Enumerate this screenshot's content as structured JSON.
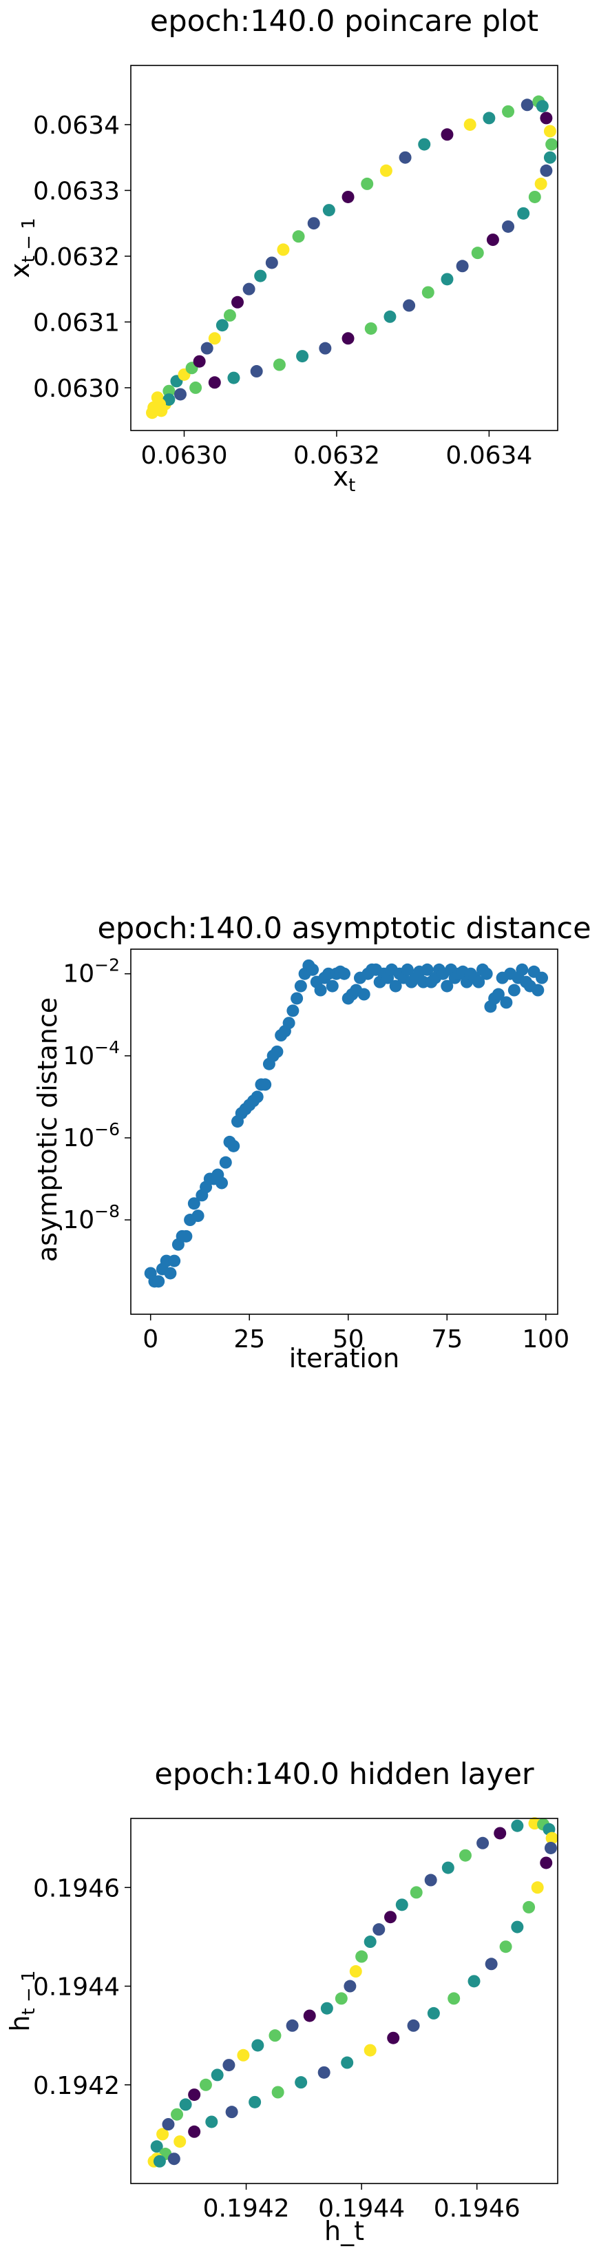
{
  "chart_data": [
    {
      "type": "scatter",
      "title": "epoch:140.0 poincare plot",
      "xlabel": "x_t",
      "ylabel": "x_{t-1}",
      "xlim": [
        0.06293,
        0.06349
      ],
      "ylim": [
        0.062935,
        0.06349
      ],
      "xticks": [
        0.063,
        0.0632,
        0.0634
      ],
      "xtick_labels": [
        "0.0630",
        "0.0632",
        "0.0634"
      ],
      "yticks": [
        0.063,
        0.0631,
        0.0632,
        0.0633,
        0.0634
      ],
      "ytick_labels": [
        "0.0630",
        "0.0631",
        "0.0632",
        "0.0633",
        "0.0634"
      ],
      "colormap": "viridis",
      "colors": [
        "#440154",
        "#3b528b",
        "#21918c",
        "#5ec962",
        "#fde725"
      ],
      "points": [
        [
          0.06296,
          0.06297,
          4
        ],
        [
          0.06297,
          0.062965,
          4
        ],
        [
          0.062975,
          0.062975,
          4
        ],
        [
          0.062965,
          0.062985,
          4
        ],
        [
          0.06298,
          0.062995,
          3
        ],
        [
          0.06299,
          0.06301,
          2
        ],
        [
          0.063,
          0.06302,
          4
        ],
        [
          0.06301,
          0.06303,
          3
        ],
        [
          0.06302,
          0.06304,
          0
        ],
        [
          0.06303,
          0.06306,
          1
        ],
        [
          0.06304,
          0.063075,
          4
        ],
        [
          0.06305,
          0.063095,
          2
        ],
        [
          0.06306,
          0.06311,
          3
        ],
        [
          0.06307,
          0.06313,
          0
        ],
        [
          0.063085,
          0.06315,
          1
        ],
        [
          0.0631,
          0.06317,
          2
        ],
        [
          0.063115,
          0.06319,
          1
        ],
        [
          0.06313,
          0.06321,
          4
        ],
        [
          0.06315,
          0.06323,
          3
        ],
        [
          0.06317,
          0.06325,
          1
        ],
        [
          0.06319,
          0.06327,
          2
        ],
        [
          0.063215,
          0.06329,
          0
        ],
        [
          0.06324,
          0.06331,
          3
        ],
        [
          0.063265,
          0.06333,
          4
        ],
        [
          0.06329,
          0.06335,
          1
        ],
        [
          0.063315,
          0.06337,
          2
        ],
        [
          0.063345,
          0.063385,
          0
        ],
        [
          0.063375,
          0.0634,
          4
        ],
        [
          0.0634,
          0.06341,
          2
        ],
        [
          0.063425,
          0.06342,
          3
        ],
        [
          0.06345,
          0.06343,
          1
        ],
        [
          0.063465,
          0.063435,
          3
        ],
        [
          0.06347,
          0.063428,
          2
        ],
        [
          0.063475,
          0.06341,
          0
        ],
        [
          0.06348,
          0.06339,
          4
        ],
        [
          0.063482,
          0.06337,
          3
        ],
        [
          0.06348,
          0.06335,
          2
        ],
        [
          0.063475,
          0.06333,
          1
        ],
        [
          0.063468,
          0.06331,
          4
        ],
        [
          0.06346,
          0.06329,
          3
        ],
        [
          0.063445,
          0.063265,
          2
        ],
        [
          0.063425,
          0.063245,
          1
        ],
        [
          0.063405,
          0.063225,
          0
        ],
        [
          0.063385,
          0.063205,
          3
        ],
        [
          0.063365,
          0.063185,
          1
        ],
        [
          0.063345,
          0.063165,
          2
        ],
        [
          0.06332,
          0.063145,
          3
        ],
        [
          0.063295,
          0.063125,
          1
        ],
        [
          0.06327,
          0.063108,
          2
        ],
        [
          0.063245,
          0.06309,
          3
        ],
        [
          0.063215,
          0.063075,
          0
        ],
        [
          0.063185,
          0.06306,
          1
        ],
        [
          0.063155,
          0.063048,
          2
        ],
        [
          0.063125,
          0.063035,
          3
        ],
        [
          0.063095,
          0.063025,
          1
        ],
        [
          0.063065,
          0.063015,
          2
        ],
        [
          0.06304,
          0.063008,
          0
        ],
        [
          0.063015,
          0.063,
          3
        ],
        [
          0.062995,
          0.06299,
          1
        ],
        [
          0.06298,
          0.062982,
          2
        ],
        [
          0.062968,
          0.062975,
          4
        ],
        [
          0.06296,
          0.062968,
          4
        ],
        [
          0.062958,
          0.062962,
          4
        ]
      ]
    },
    {
      "type": "scatter",
      "title": "epoch:140.0 asymptotic distance",
      "xlabel": "iteration",
      "ylabel": "asymptotic distance",
      "yscale": "log",
      "xlim": [
        -5,
        103
      ],
      "ylim_log10": [
        -10.3,
        -1.4
      ],
      "xticks": [
        0,
        25,
        50,
        75,
        100
      ],
      "xtick_labels": [
        "0",
        "25",
        "50",
        "75",
        "100"
      ],
      "yticks_exp": [
        -2,
        -4,
        -6,
        -8
      ],
      "ytick_labels": [
        "10",
        "10",
        "10",
        "10"
      ],
      "ytick_exponents": [
        "−2",
        "−4",
        "−6",
        "−8"
      ],
      "color": "#1f77b4",
      "log10_values": [
        -9.3,
        -9.5,
        -9.5,
        -9.2,
        -9.0,
        -9.3,
        -9.0,
        -8.6,
        -8.4,
        -8.4,
        -8.0,
        -7.6,
        -7.9,
        -7.4,
        -7.2,
        -7.0,
        -7.0,
        -6.9,
        -7.1,
        -6.6,
        -6.1,
        -6.2,
        -5.6,
        -5.4,
        -5.3,
        -5.2,
        -5.1,
        -5.0,
        -4.7,
        -4.7,
        -4.2,
        -4.0,
        -3.9,
        -3.5,
        -3.4,
        -3.2,
        -2.9,
        -2.6,
        -2.3,
        -2.0,
        -1.8,
        -1.9,
        -2.2,
        -2.4,
        -2.1,
        -2.0,
        -2.3,
        -2.0,
        -1.95,
        -2.0,
        -2.6,
        -2.5,
        -2.4,
        -2.1,
        -2.5,
        -2.0,
        -1.9,
        -1.9,
        -2.2,
        -2.0,
        -2.1,
        -1.9,
        -2.3,
        -2.0,
        -2.1,
        -1.9,
        -2.2,
        -2.1,
        -1.95,
        -2.2,
        -1.9,
        -2.2,
        -2.1,
        -1.9,
        -2.0,
        -2.3,
        -1.9,
        -2.1,
        -2.0,
        -1.95,
        -2.2,
        -2.0,
        -2.1,
        -2.2,
        -1.9,
        -2.0,
        -2.8,
        -2.6,
        -2.5,
        -2.1,
        -2.7,
        -2.0,
        -2.4,
        -2.1,
        -1.9,
        -2.2,
        -2.3,
        -1.95,
        -2.4,
        -2.1
      ]
    },
    {
      "type": "scatter",
      "title": "epoch:140.0 hidden layer",
      "xlabel": "h_t",
      "ylabel": "h_{t-1}",
      "xlim": [
        0.194,
        0.19474
      ],
      "ylim": [
        0.194,
        0.19474
      ],
      "xticks": [
        0.1942,
        0.1944,
        0.1946
      ],
      "xtick_labels": [
        "0.1942",
        "0.1944",
        "0.1946"
      ],
      "yticks": [
        0.1942,
        0.1944,
        0.1946
      ],
      "ytick_labels": [
        "0.1942",
        "0.1944",
        "0.1946"
      ],
      "colormap": "viridis",
      "colors": [
        "#440154",
        "#3b528b",
        "#21918c",
        "#5ec962",
        "#fde725"
      ],
      "points": [
        [
          0.19404,
          0.194045,
          4
        ],
        [
          0.194045,
          0.194075,
          2
        ],
        [
          0.194055,
          0.1941,
          4
        ],
        [
          0.194065,
          0.19412,
          1
        ],
        [
          0.19408,
          0.19414,
          3
        ],
        [
          0.194095,
          0.19416,
          2
        ],
        [
          0.19411,
          0.19418,
          0
        ],
        [
          0.19413,
          0.1942,
          3
        ],
        [
          0.19415,
          0.19422,
          2
        ],
        [
          0.19417,
          0.19424,
          1
        ],
        [
          0.194195,
          0.19426,
          4
        ],
        [
          0.19422,
          0.19428,
          2
        ],
        [
          0.19425,
          0.1943,
          3
        ],
        [
          0.19428,
          0.19432,
          1
        ],
        [
          0.19431,
          0.19434,
          0
        ],
        [
          0.19434,
          0.194355,
          2
        ],
        [
          0.194365,
          0.194375,
          3
        ],
        [
          0.19438,
          0.1944,
          1
        ],
        [
          0.19439,
          0.19443,
          4
        ],
        [
          0.1944,
          0.19446,
          3
        ],
        [
          0.194415,
          0.19449,
          2
        ],
        [
          0.19443,
          0.194515,
          1
        ],
        [
          0.19445,
          0.19454,
          0
        ],
        [
          0.19447,
          0.194565,
          2
        ],
        [
          0.194495,
          0.19459,
          3
        ],
        [
          0.19452,
          0.194615,
          1
        ],
        [
          0.19455,
          0.19464,
          2
        ],
        [
          0.19458,
          0.194665,
          3
        ],
        [
          0.19461,
          0.19469,
          1
        ],
        [
          0.19464,
          0.19471,
          0
        ],
        [
          0.19467,
          0.194725,
          2
        ],
        [
          0.1947,
          0.19473,
          4
        ],
        [
          0.194715,
          0.194728,
          3
        ],
        [
          0.194725,
          0.194718,
          2
        ],
        [
          0.19473,
          0.1947,
          4
        ],
        [
          0.194728,
          0.19468,
          1
        ],
        [
          0.19472,
          0.19465,
          0
        ],
        [
          0.194705,
          0.1946,
          4
        ],
        [
          0.19469,
          0.19456,
          3
        ],
        [
          0.19467,
          0.19452,
          2
        ],
        [
          0.19465,
          0.19448,
          3
        ],
        [
          0.194625,
          0.194445,
          1
        ],
        [
          0.194595,
          0.19441,
          2
        ],
        [
          0.19456,
          0.194375,
          3
        ],
        [
          0.194525,
          0.194345,
          2
        ],
        [
          0.19449,
          0.19432,
          1
        ],
        [
          0.194455,
          0.194295,
          0
        ],
        [
          0.194415,
          0.19427,
          4
        ],
        [
          0.194375,
          0.194245,
          2
        ],
        [
          0.194335,
          0.194225,
          1
        ],
        [
          0.194295,
          0.194205,
          2
        ],
        [
          0.194255,
          0.194185,
          3
        ],
        [
          0.194215,
          0.194165,
          2
        ],
        [
          0.194175,
          0.194145,
          1
        ],
        [
          0.19414,
          0.194125,
          2
        ],
        [
          0.19411,
          0.194105,
          0
        ],
        [
          0.194085,
          0.194085,
          4
        ],
        [
          0.19406,
          0.19406,
          3
        ],
        [
          0.194045,
          0.19405,
          4
        ],
        [
          0.19405,
          0.194045,
          2
        ],
        [
          0.194075,
          0.19405,
          1
        ]
      ]
    }
  ]
}
